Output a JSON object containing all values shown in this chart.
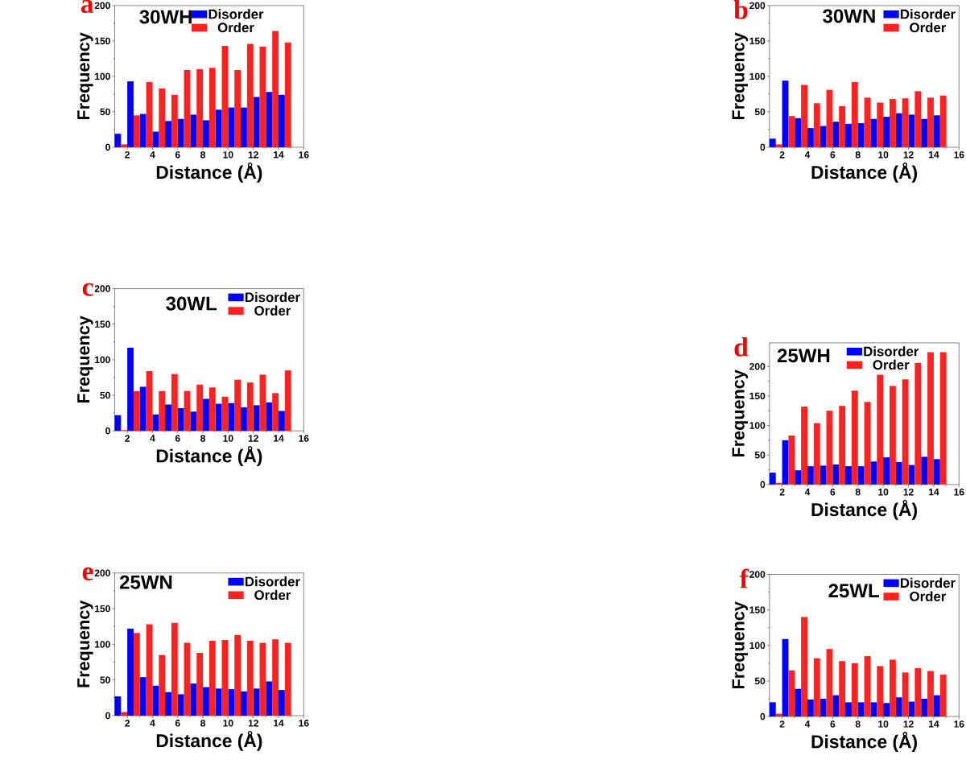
{
  "chart_data": [
    {
      "type": "bar",
      "title": "30WH",
      "annotations": [
        "a"
      ],
      "xlabel": "Distance (Å)",
      "ylabel": "Frequency",
      "x": [
        1.5,
        2.5,
        3.5,
        4.5,
        5.5,
        6.5,
        7.5,
        8.5,
        9.5,
        10.5,
        11.5,
        12.5,
        13.5,
        14.5
      ],
      "xlim": [
        1,
        16
      ],
      "xticks": [
        2,
        4,
        6,
        8,
        10,
        12,
        14,
        16
      ],
      "ylim": [
        0,
        200
      ],
      "yticks": [
        0,
        50,
        100,
        150,
        200
      ],
      "legend": "top",
      "series": [
        {
          "name": "Disorder",
          "color": "#0000ff",
          "values": [
            19,
            93,
            47,
            22,
            37,
            40,
            46,
            38,
            53,
            56,
            56,
            71,
            78,
            74
          ]
        },
        {
          "name": "Order",
          "color": "#ff2020",
          "values": [
            4,
            45,
            92,
            83,
            74,
            109,
            110,
            112,
            143,
            109,
            146,
            142,
            164,
            148
          ]
        }
      ]
    },
    {
      "type": "bar",
      "title": "30WN",
      "annotations": [
        "b"
      ],
      "xlabel": "Distance (Å)",
      "ylabel": "Frequency",
      "x": [
        1.5,
        2.5,
        3.5,
        4.5,
        5.5,
        6.5,
        7.5,
        8.5,
        9.5,
        10.5,
        11.5,
        12.5,
        13.5,
        14.5
      ],
      "xlim": [
        1,
        16
      ],
      "xticks": [
        2,
        4,
        6,
        8,
        10,
        12,
        14,
        16
      ],
      "ylim": [
        0,
        200
      ],
      "yticks": [
        0,
        50,
        100,
        150,
        200
      ],
      "legend": "top right",
      "series": [
        {
          "name": "Disorder",
          "color": "#0000ff",
          "values": [
            12,
            94,
            41,
            27,
            30,
            36,
            33,
            34,
            40,
            43,
            48,
            46,
            40,
            45
          ]
        },
        {
          "name": "Order",
          "color": "#ff2020",
          "values": [
            4,
            44,
            88,
            62,
            81,
            58,
            92,
            70,
            63,
            68,
            69,
            79,
            70,
            73
          ]
        }
      ]
    },
    {
      "type": "bar",
      "title": "30WL",
      "annotations": [
        "c"
      ],
      "xlabel": "Distance (Å)",
      "ylabel": "Frequency",
      "x": [
        1.5,
        2.5,
        3.5,
        4.5,
        5.5,
        6.5,
        7.5,
        8.5,
        9.5,
        10.5,
        11.5,
        12.5,
        13.5,
        14.5
      ],
      "xlim": [
        1,
        16
      ],
      "xticks": [
        2,
        4,
        6,
        8,
        10,
        12,
        14,
        16
      ],
      "ylim": [
        0,
        200
      ],
      "yticks": [
        0,
        50,
        100,
        150,
        200
      ],
      "legend": "top right",
      "series": [
        {
          "name": "Disorder",
          "color": "#0000ff",
          "values": [
            22,
            117,
            62,
            23,
            37,
            32,
            27,
            45,
            38,
            39,
            33,
            36,
            40,
            28
          ]
        },
        {
          "name": "Order",
          "color": "#ff2020",
          "values": [
            1,
            56,
            84,
            56,
            80,
            56,
            65,
            61,
            48,
            72,
            68,
            79,
            53,
            85
          ]
        }
      ]
    },
    {
      "type": "bar",
      "title": "25WH",
      "annotations": [
        "d"
      ],
      "xlabel": "Distance (Å)",
      "ylabel": "Frequency",
      "x": [
        1.5,
        2.5,
        3.5,
        4.5,
        5.5,
        6.5,
        7.5,
        8.5,
        9.5,
        10.5,
        11.5,
        12.5,
        13.5,
        14.5
      ],
      "xlim": [
        1,
        16
      ],
      "xticks": [
        2,
        4,
        6,
        8,
        10,
        12,
        14,
        16
      ],
      "ylim": [
        0,
        240
      ],
      "yticks": [
        0,
        50,
        100,
        150,
        200
      ],
      "legend": "top",
      "series": [
        {
          "name": "Disorder",
          "color": "#0000ff",
          "values": [
            20,
            75,
            24,
            31,
            32,
            34,
            31,
            31,
            39,
            46,
            38,
            33,
            47,
            43
          ]
        },
        {
          "name": "Order",
          "color": "#ff2020",
          "values": [
            3,
            83,
            132,
            104,
            125,
            133,
            159,
            140,
            186,
            167,
            178,
            206,
            224,
            224
          ]
        }
      ]
    },
    {
      "type": "bar",
      "title": "25WN",
      "annotations": [
        "e"
      ],
      "xlabel": "Distance (Å)",
      "ylabel": "Frequency",
      "x": [
        1.5,
        2.5,
        3.5,
        4.5,
        5.5,
        6.5,
        7.5,
        8.5,
        9.5,
        10.5,
        11.5,
        12.5,
        13.5,
        14.5
      ],
      "xlim": [
        1,
        16
      ],
      "xticks": [
        2,
        4,
        6,
        8,
        10,
        12,
        14,
        16
      ],
      "ylim": [
        0,
        200
      ],
      "yticks": [
        0,
        50,
        100,
        150,
        200
      ],
      "legend": "top right",
      "series": [
        {
          "name": "Disorder",
          "color": "#0000ff",
          "values": [
            27,
            122,
            54,
            42,
            33,
            30,
            45,
            40,
            38,
            37,
            34,
            38,
            48,
            36
          ]
        },
        {
          "name": "Order",
          "color": "#ff2020",
          "values": [
            5,
            116,
            128,
            85,
            130,
            102,
            88,
            105,
            106,
            113,
            105,
            102,
            107,
            102
          ]
        }
      ]
    },
    {
      "type": "bar",
      "title": "25WL",
      "annotations": [
        "f"
      ],
      "xlabel": "Distance (Å)",
      "ylabel": "Frequency",
      "x": [
        1.5,
        2.5,
        3.5,
        4.5,
        5.5,
        6.5,
        7.5,
        8.5,
        9.5,
        10.5,
        11.5,
        12.5,
        13.5,
        14.5
      ],
      "xlim": [
        1,
        16
      ],
      "xticks": [
        2,
        4,
        6,
        8,
        10,
        12,
        14,
        16
      ],
      "ylim": [
        0,
        200
      ],
      "yticks": [
        0,
        50,
        100,
        150,
        200
      ],
      "legend": "top right",
      "series": [
        {
          "name": "Disorder",
          "color": "#0000ff",
          "values": [
            20,
            109,
            39,
            24,
            25,
            30,
            20,
            20,
            20,
            19,
            27,
            21,
            25,
            30
          ]
        },
        {
          "name": "Order",
          "color": "#ff2020",
          "values": [
            4,
            65,
            140,
            82,
            95,
            78,
            75,
            85,
            71,
            80,
            62,
            68,
            64,
            59
          ]
        }
      ]
    }
  ]
}
